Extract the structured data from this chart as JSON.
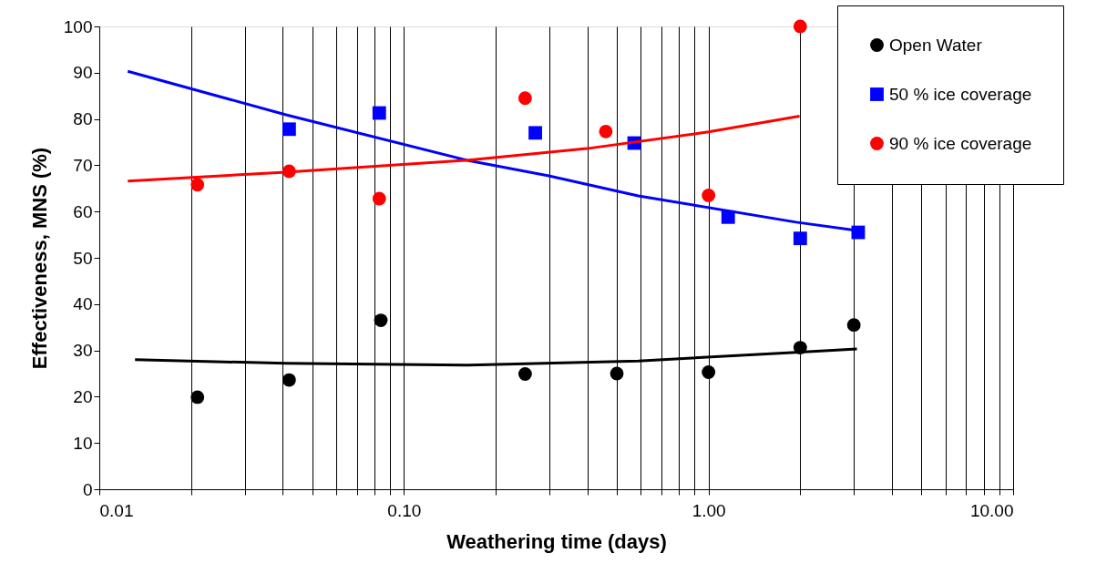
{
  "chart_data": {
    "type": "scatter",
    "xlabel": "Weathering time (days)",
    "ylabel": "Effectiveness, MNS (%)",
    "log": "x",
    "xlim": [
      0.01,
      10
    ],
    "ylim": [
      0,
      100
    ],
    "xticks": [
      {
        "value": 0.01,
        "label": "0.01"
      },
      {
        "value": 0.02,
        "label": null
      },
      {
        "value": 0.03,
        "label": null
      },
      {
        "value": 0.04,
        "label": null
      },
      {
        "value": 0.05,
        "label": null
      },
      {
        "value": 0.06,
        "label": null
      },
      {
        "value": 0.07,
        "label": null
      },
      {
        "value": 0.08,
        "label": null
      },
      {
        "value": 0.09,
        "label": null
      },
      {
        "value": 0.1,
        "label": "0.10"
      },
      {
        "value": 0.2,
        "label": null
      },
      {
        "value": 0.3,
        "label": null
      },
      {
        "value": 0.4,
        "label": null
      },
      {
        "value": 0.5,
        "label": null
      },
      {
        "value": 0.6,
        "label": null
      },
      {
        "value": 0.7,
        "label": null
      },
      {
        "value": 0.8,
        "label": null
      },
      {
        "value": 0.9,
        "label": null
      },
      {
        "value": 1,
        "label": "1.00"
      },
      {
        "value": 2,
        "label": null
      },
      {
        "value": 3,
        "label": null
      },
      {
        "value": 4,
        "label": null
      },
      {
        "value": 5,
        "label": null
      },
      {
        "value": 6,
        "label": null
      },
      {
        "value": 7,
        "label": null
      },
      {
        "value": 8,
        "label": null
      },
      {
        "value": 9,
        "label": null
      },
      {
        "value": 10,
        "label": "10.00"
      }
    ],
    "yticks": [
      0,
      10,
      20,
      30,
      40,
      50,
      60,
      70,
      80,
      90,
      100
    ],
    "grid": "x",
    "legend": "top right",
    "series": [
      {
        "name": "Open Water",
        "marker": "circle",
        "color": "#000000",
        "x": [
          0.021,
          0.042,
          0.084,
          0.25,
          0.5,
          1.0,
          2.0,
          3.0
        ],
        "values": [
          19.9,
          23.6,
          36.5,
          24.9,
          25.0,
          25.3,
          30.6,
          35.5
        ]
      },
      {
        "name": "50 % ice coverage",
        "marker": "square",
        "color": "#0000ff",
        "x": [
          0.042,
          0.083,
          0.27,
          0.57,
          1.16,
          2.0,
          3.1
        ],
        "values": [
          77.8,
          81.3,
          77.0,
          74.8,
          58.8,
          54.2,
          55.5
        ]
      },
      {
        "name": "90 % ice coverage",
        "marker": "circle",
        "color": "#ff0000",
        "x": [
          0.021,
          0.042,
          0.083,
          0.25,
          0.46,
          1.0,
          2.0
        ],
        "values": [
          65.8,
          68.7,
          62.8,
          84.5,
          77.3,
          63.5,
          100
        ]
      },
      {
        "type": "line",
        "color": "#000000",
        "x": [
          0.0131,
          0.041,
          0.163,
          0.588,
          1.94,
          3.07
        ],
        "values": [
          28.0,
          27.2,
          26.8,
          27.7,
          29.6,
          30.3
        ]
      },
      {
        "type": "line",
        "color": "#0000ff",
        "x": [
          0.0124,
          0.041,
          0.163,
          0.299,
          0.588,
          1.94,
          3.07
        ],
        "values": [
          90.3,
          80.9,
          71.0,
          67.7,
          63.4,
          57.7,
          55.9
        ]
      },
      {
        "type": "line",
        "color": "#ff0000",
        "x": [
          0.0124,
          0.041,
          0.163,
          0.398,
          1.0,
          1.99
        ],
        "values": [
          66.6,
          68.5,
          71.1,
          73.6,
          77.2,
          80.6
        ]
      }
    ]
  }
}
